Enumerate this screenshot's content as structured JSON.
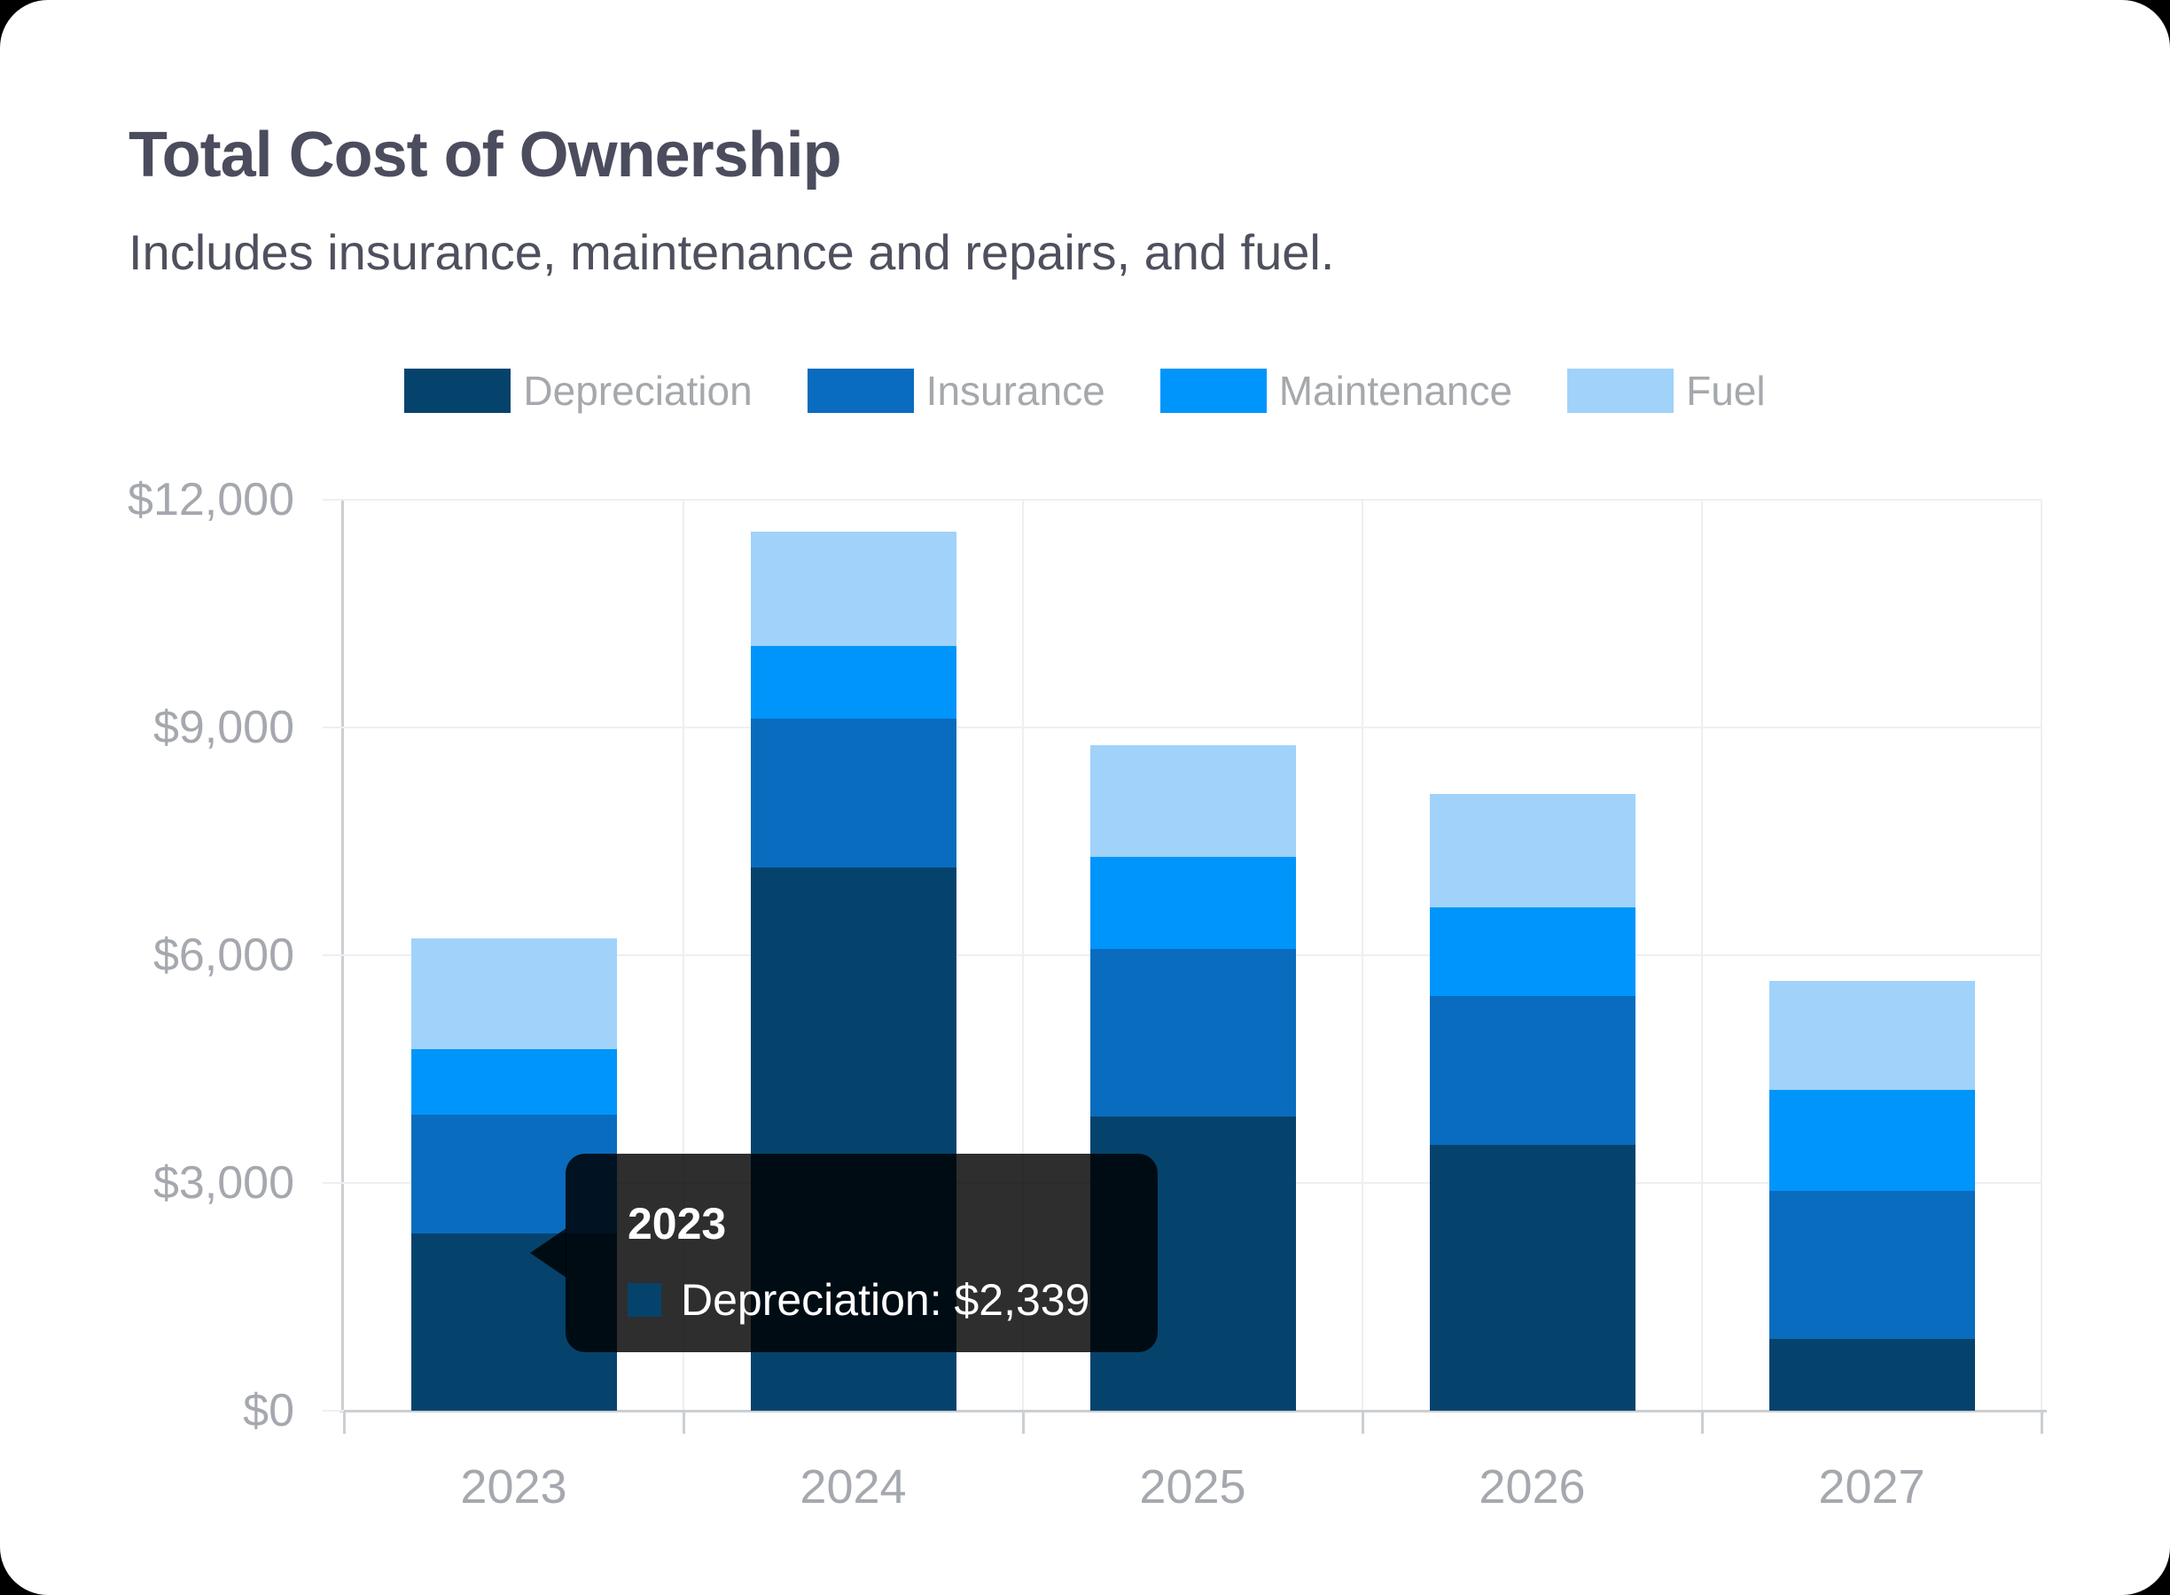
{
  "header": {
    "title": "Total Cost of Ownership",
    "subtitle": "Includes insurance, maintenance and repairs, and fuel."
  },
  "chart_data": {
    "type": "bar",
    "stacked": true,
    "title": "Total Cost of Ownership",
    "categories": [
      "2023",
      "2024",
      "2025",
      "2026",
      "2027"
    ],
    "series": [
      {
        "name": "Depreciation",
        "color": "#05436d",
        "values": [
          2339,
          7150,
          3880,
          3500,
          950
        ]
      },
      {
        "name": "Insurance",
        "color": "#0a6cbe",
        "values": [
          1561,
          1970,
          2200,
          1960,
          1950
        ]
      },
      {
        "name": "Maintenance",
        "color": "#0095fb",
        "values": [
          860,
          950,
          1220,
          1170,
          1320
        ]
      },
      {
        "name": "Fuel",
        "color": "#a0d2fa",
        "values": [
          1460,
          1510,
          1470,
          1490,
          1440
        ]
      }
    ],
    "ylim": [
      0,
      12000
    ],
    "ytick_values": [
      0,
      3000,
      6000,
      9000,
      12000
    ],
    "ytick_labels": [
      "$0",
      "$3,000",
      "$6,000",
      "$9,000",
      "$12,000"
    ],
    "xlabel": "",
    "ylabel": "",
    "grid": true,
    "legend_position": "top"
  },
  "tooltip": {
    "title": "2023",
    "series": "Depreciation",
    "text": "Depreciation: $2,339"
  },
  "colors": {
    "title": "#4b4c5d",
    "subtitle": "#4e505e",
    "tick_label": "#a5a8ae",
    "legend_label": "#a5a8ac",
    "grid": "#efeff1",
    "axis": "#cbcfd3",
    "tooltip_bg": "rgba(0,0,0,0.82)"
  }
}
